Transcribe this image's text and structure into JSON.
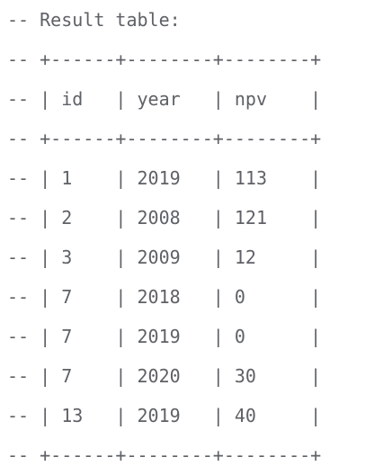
{
  "code_block": {
    "lines": [
      "-- Result table:",
      "-- +------+--------+--------+",
      "-- | id   | year   | npv    |",
      "-- +------+--------+--------+",
      "-- | 1    | 2019   | 113    |",
      "-- | 2    | 2008   | 121    |",
      "-- | 3    | 2009   | 12     |",
      "-- | 7    | 2018   | 0      |",
      "-- | 7    | 2019   | 0      |",
      "-- | 7    | 2020   | 30     |",
      "-- | 13   | 2019   | 40     |",
      "-- +------+--------+--------+"
    ]
  },
  "colors": {
    "comment_text": "#5e6166",
    "background": "#ffffff"
  }
}
